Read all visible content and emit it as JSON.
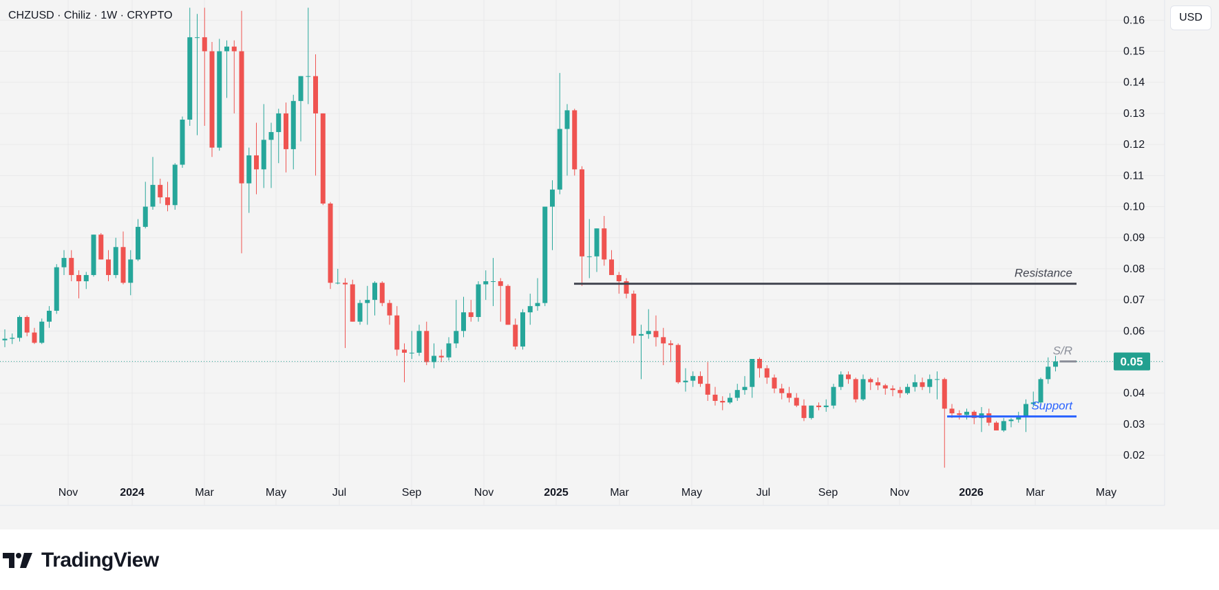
{
  "header": {
    "symbol_title": "CHZUSD · Chiliz · 1W · CRYPTO",
    "currency": "USD"
  },
  "brand": {
    "name": "TradingView"
  },
  "colors": {
    "up": "#26a69a",
    "down": "#ef5350",
    "price_label_bg": "#22a08f",
    "resistance": "#434651",
    "support": "#2962ff",
    "sr": "#8a8e99"
  },
  "chart_data": {
    "type": "candlestick",
    "timeframe": "1W",
    "x_ticks": [
      "Nov",
      "2024",
      "Mar",
      "May",
      "Jul",
      "Sep",
      "Nov",
      "2025",
      "Mar",
      "May",
      "Jul",
      "Sep",
      "Nov",
      "2026",
      "Mar",
      "May"
    ],
    "x_ticks_bold": [
      "2024",
      "2025",
      "2026"
    ],
    "y_ticks": [
      "0.02",
      "0.03",
      "0.04",
      "0.05",
      "0.06",
      "0.07",
      "0.08",
      "0.09",
      "0.10",
      "0.11",
      "0.12",
      "0.13",
      "0.14",
      "0.15",
      "0.16"
    ],
    "y_range": [
      0.0125,
      0.1645
    ],
    "last_price_label": "0.05",
    "last_price": 0.0502,
    "annotations": [
      {
        "label": "Resistance",
        "value": 0.0752
      },
      {
        "label": "S/R",
        "value": 0.0502
      },
      {
        "label": "Support",
        "value": 0.0325
      }
    ],
    "candles": [
      [
        0.057,
        0.0605,
        0.0548,
        0.0575
      ],
      [
        0.0575,
        0.0592,
        0.0558,
        0.0578
      ],
      [
        0.0578,
        0.065,
        0.0566,
        0.0645
      ],
      [
        0.0645,
        0.065,
        0.0583,
        0.0595
      ],
      [
        0.0595,
        0.061,
        0.0558,
        0.0562
      ],
      [
        0.0562,
        0.064,
        0.0558,
        0.063
      ],
      [
        0.063,
        0.068,
        0.061,
        0.0665
      ],
      [
        0.0665,
        0.0815,
        0.0655,
        0.0805
      ],
      [
        0.0805,
        0.086,
        0.078,
        0.0835
      ],
      [
        0.0835,
        0.086,
        0.076,
        0.078
      ],
      [
        0.078,
        0.0795,
        0.0705,
        0.076
      ],
      [
        0.076,
        0.079,
        0.0735,
        0.078
      ],
      [
        0.078,
        0.091,
        0.0775,
        0.091
      ],
      [
        0.091,
        0.0915,
        0.083,
        0.083
      ],
      [
        0.083,
        0.086,
        0.076,
        0.078
      ],
      [
        0.078,
        0.09,
        0.077,
        0.087
      ],
      [
        0.087,
        0.092,
        0.075,
        0.0755
      ],
      [
        0.0755,
        0.086,
        0.0715,
        0.083
      ],
      [
        0.083,
        0.096,
        0.0825,
        0.0935
      ],
      [
        0.0935,
        0.108,
        0.093,
        0.1
      ],
      [
        0.1,
        0.116,
        0.099,
        0.107
      ],
      [
        0.107,
        0.109,
        0.101,
        0.103
      ],
      [
        0.103,
        0.108,
        0.0985,
        0.1005
      ],
      [
        0.1005,
        0.114,
        0.099,
        0.1135
      ],
      [
        0.1135,
        0.129,
        0.1125,
        0.128
      ],
      [
        0.128,
        0.164,
        0.126,
        0.1545
      ],
      [
        0.1545,
        0.162,
        0.123,
        0.1545
      ],
      [
        0.1545,
        0.164,
        0.126,
        0.15
      ],
      [
        0.15,
        0.153,
        0.116,
        0.119
      ],
      [
        0.119,
        0.154,
        0.118,
        0.15
      ],
      [
        0.15,
        0.1535,
        0.135,
        0.1515
      ],
      [
        0.1515,
        0.1535,
        0.13,
        0.15
      ],
      [
        0.15,
        0.163,
        0.085,
        0.1075
      ],
      [
        0.1075,
        0.119,
        0.098,
        0.1165
      ],
      [
        0.1165,
        0.127,
        0.104,
        0.112
      ],
      [
        0.112,
        0.133,
        0.106,
        0.1215
      ],
      [
        0.1215,
        0.127,
        0.106,
        0.124
      ],
      [
        0.124,
        0.1315,
        0.114,
        0.13
      ],
      [
        0.13,
        0.1335,
        0.111,
        0.1185
      ],
      [
        0.1185,
        0.136,
        0.112,
        0.134
      ],
      [
        0.134,
        0.142,
        0.121,
        0.142
      ],
      [
        0.142,
        0.164,
        0.133,
        0.142
      ],
      [
        0.142,
        0.149,
        0.11,
        0.13
      ],
      [
        0.13,
        0.13,
        0.1005,
        0.101
      ],
      [
        0.101,
        0.1015,
        0.0735,
        0.0755
      ],
      [
        0.0755,
        0.08,
        0.075,
        0.0755
      ],
      [
        0.0755,
        0.077,
        0.0545,
        0.075
      ],
      [
        0.075,
        0.0765,
        0.063,
        0.063
      ],
      [
        0.063,
        0.07,
        0.062,
        0.069
      ],
      [
        0.069,
        0.0745,
        0.062,
        0.07
      ],
      [
        0.07,
        0.076,
        0.065,
        0.0755
      ],
      [
        0.0755,
        0.076,
        0.068,
        0.069
      ],
      [
        0.069,
        0.07,
        0.062,
        0.065
      ],
      [
        0.065,
        0.068,
        0.052,
        0.054
      ],
      [
        0.054,
        0.056,
        0.0435,
        0.053
      ],
      [
        0.053,
        0.06,
        0.051,
        0.053
      ],
      [
        0.053,
        0.062,
        0.052,
        0.06
      ],
      [
        0.06,
        0.063,
        0.049,
        0.05
      ],
      [
        0.05,
        0.056,
        0.048,
        0.052
      ],
      [
        0.052,
        0.054,
        0.05,
        0.0515
      ],
      [
        0.0515,
        0.058,
        0.0505,
        0.056
      ],
      [
        0.056,
        0.07,
        0.0545,
        0.06
      ],
      [
        0.06,
        0.071,
        0.058,
        0.066
      ],
      [
        0.066,
        0.07,
        0.063,
        0.0645
      ],
      [
        0.0645,
        0.076,
        0.063,
        0.075
      ],
      [
        0.075,
        0.0795,
        0.07,
        0.076
      ],
      [
        0.076,
        0.0835,
        0.068,
        0.076
      ],
      [
        0.076,
        0.077,
        0.063,
        0.0745
      ],
      [
        0.0745,
        0.075,
        0.062,
        0.062
      ],
      [
        0.062,
        0.064,
        0.054,
        0.055
      ],
      [
        0.055,
        0.067,
        0.054,
        0.066
      ],
      [
        0.066,
        0.072,
        0.062,
        0.068
      ],
      [
        0.068,
        0.077,
        0.0665,
        0.069
      ],
      [
        0.069,
        0.1,
        0.068,
        0.1
      ],
      [
        0.1,
        0.1085,
        0.086,
        0.1055
      ],
      [
        0.1055,
        0.143,
        0.104,
        0.125
      ],
      [
        0.125,
        0.133,
        0.11,
        0.131
      ],
      [
        0.131,
        0.1315,
        0.11,
        0.112
      ],
      [
        0.112,
        0.113,
        0.0745,
        0.084
      ],
      [
        0.084,
        0.096,
        0.077,
        0.084
      ],
      [
        0.084,
        0.093,
        0.079,
        0.093
      ],
      [
        0.093,
        0.097,
        0.081,
        0.083
      ],
      [
        0.083,
        0.086,
        0.078,
        0.078
      ],
      [
        0.078,
        0.079,
        0.072,
        0.076
      ],
      [
        0.076,
        0.077,
        0.0705,
        0.072
      ],
      [
        0.072,
        0.073,
        0.056,
        0.0585
      ],
      [
        0.0585,
        0.062,
        0.0445,
        0.059
      ],
      [
        0.059,
        0.067,
        0.0575,
        0.06
      ],
      [
        0.06,
        0.065,
        0.055,
        0.058
      ],
      [
        0.058,
        0.061,
        0.049,
        0.056
      ],
      [
        0.056,
        0.057,
        0.05,
        0.0555
      ],
      [
        0.0555,
        0.056,
        0.043,
        0.0435
      ],
      [
        0.0435,
        0.048,
        0.0405,
        0.044
      ],
      [
        0.044,
        0.047,
        0.042,
        0.0455
      ],
      [
        0.0455,
        0.047,
        0.042,
        0.043
      ],
      [
        0.043,
        0.05,
        0.0375,
        0.0395
      ],
      [
        0.0395,
        0.042,
        0.036,
        0.0375
      ],
      [
        0.0375,
        0.039,
        0.0345,
        0.037
      ],
      [
        0.037,
        0.04,
        0.0365,
        0.0385
      ],
      [
        0.0385,
        0.043,
        0.0375,
        0.041
      ],
      [
        0.041,
        0.0455,
        0.0395,
        0.042
      ],
      [
        0.042,
        0.051,
        0.0385,
        0.051
      ],
      [
        0.051,
        0.0515,
        0.045,
        0.048
      ],
      [
        0.048,
        0.049,
        0.043,
        0.045
      ],
      [
        0.045,
        0.046,
        0.04,
        0.0415
      ],
      [
        0.0415,
        0.043,
        0.038,
        0.04
      ],
      [
        0.04,
        0.042,
        0.037,
        0.0385
      ],
      [
        0.0385,
        0.04,
        0.0355,
        0.036
      ],
      [
        0.036,
        0.038,
        0.031,
        0.032
      ],
      [
        0.032,
        0.036,
        0.0315,
        0.036
      ],
      [
        0.036,
        0.037,
        0.0345,
        0.0355
      ],
      [
        0.0355,
        0.038,
        0.034,
        0.036
      ],
      [
        0.036,
        0.043,
        0.035,
        0.042
      ],
      [
        0.042,
        0.047,
        0.041,
        0.046
      ],
      [
        0.046,
        0.047,
        0.043,
        0.0445
      ],
      [
        0.0445,
        0.045,
        0.037,
        0.038
      ],
      [
        0.038,
        0.046,
        0.0375,
        0.0445
      ],
      [
        0.0445,
        0.045,
        0.041,
        0.0435
      ],
      [
        0.0435,
        0.045,
        0.041,
        0.0425
      ],
      [
        0.0425,
        0.043,
        0.0395,
        0.0415
      ],
      [
        0.0415,
        0.0425,
        0.039,
        0.041
      ],
      [
        0.041,
        0.042,
        0.0385,
        0.04
      ],
      [
        0.04,
        0.043,
        0.0395,
        0.042
      ],
      [
        0.042,
        0.046,
        0.0405,
        0.0435
      ],
      [
        0.0435,
        0.045,
        0.041,
        0.042
      ],
      [
        0.042,
        0.046,
        0.04,
        0.0445
      ],
      [
        0.0445,
        0.047,
        0.038,
        0.0445
      ],
      [
        0.0445,
        0.045,
        0.016,
        0.035
      ],
      [
        0.035,
        0.0365,
        0.032,
        0.0335
      ],
      [
        0.0335,
        0.0345,
        0.0315,
        0.033
      ],
      [
        0.033,
        0.035,
        0.0315,
        0.034
      ],
      [
        0.034,
        0.0345,
        0.03,
        0.032
      ],
      [
        0.032,
        0.0355,
        0.0275,
        0.0335
      ],
      [
        0.0335,
        0.035,
        0.0295,
        0.0305
      ],
      [
        0.0305,
        0.031,
        0.028,
        0.028
      ],
      [
        0.028,
        0.032,
        0.0275,
        0.031
      ],
      [
        0.031,
        0.032,
        0.029,
        0.0315
      ],
      [
        0.0315,
        0.034,
        0.0305,
        0.0325
      ],
      [
        0.0325,
        0.038,
        0.0275,
        0.0365
      ],
      [
        0.0365,
        0.0405,
        0.0355,
        0.037
      ],
      [
        0.037,
        0.045,
        0.0365,
        0.0445
      ],
      [
        0.0445,
        0.0515,
        0.043,
        0.0485
      ],
      [
        0.0485,
        0.052,
        0.047,
        0.0502
      ]
    ]
  }
}
